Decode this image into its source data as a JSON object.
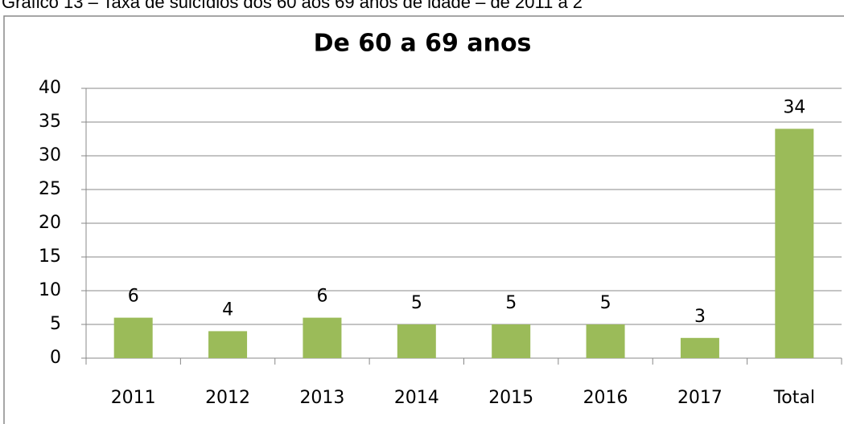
{
  "caption": "Gráfico 13 – Taxa de suicídios dos 60 aos 69 anos de idade – de 2011 a 2",
  "chart_data": {
    "type": "bar",
    "title": "De 60 a 69 anos",
    "categories": [
      "2011",
      "2012",
      "2013",
      "2014",
      "2015",
      "2016",
      "2017",
      "Total"
    ],
    "values": [
      6,
      4,
      6,
      5,
      5,
      5,
      3,
      34
    ],
    "color": "#9bbb59",
    "ylim": [
      0,
      40
    ],
    "yticks": [
      0,
      5,
      10,
      15,
      20,
      25,
      30,
      35,
      40
    ],
    "grid": true
  }
}
